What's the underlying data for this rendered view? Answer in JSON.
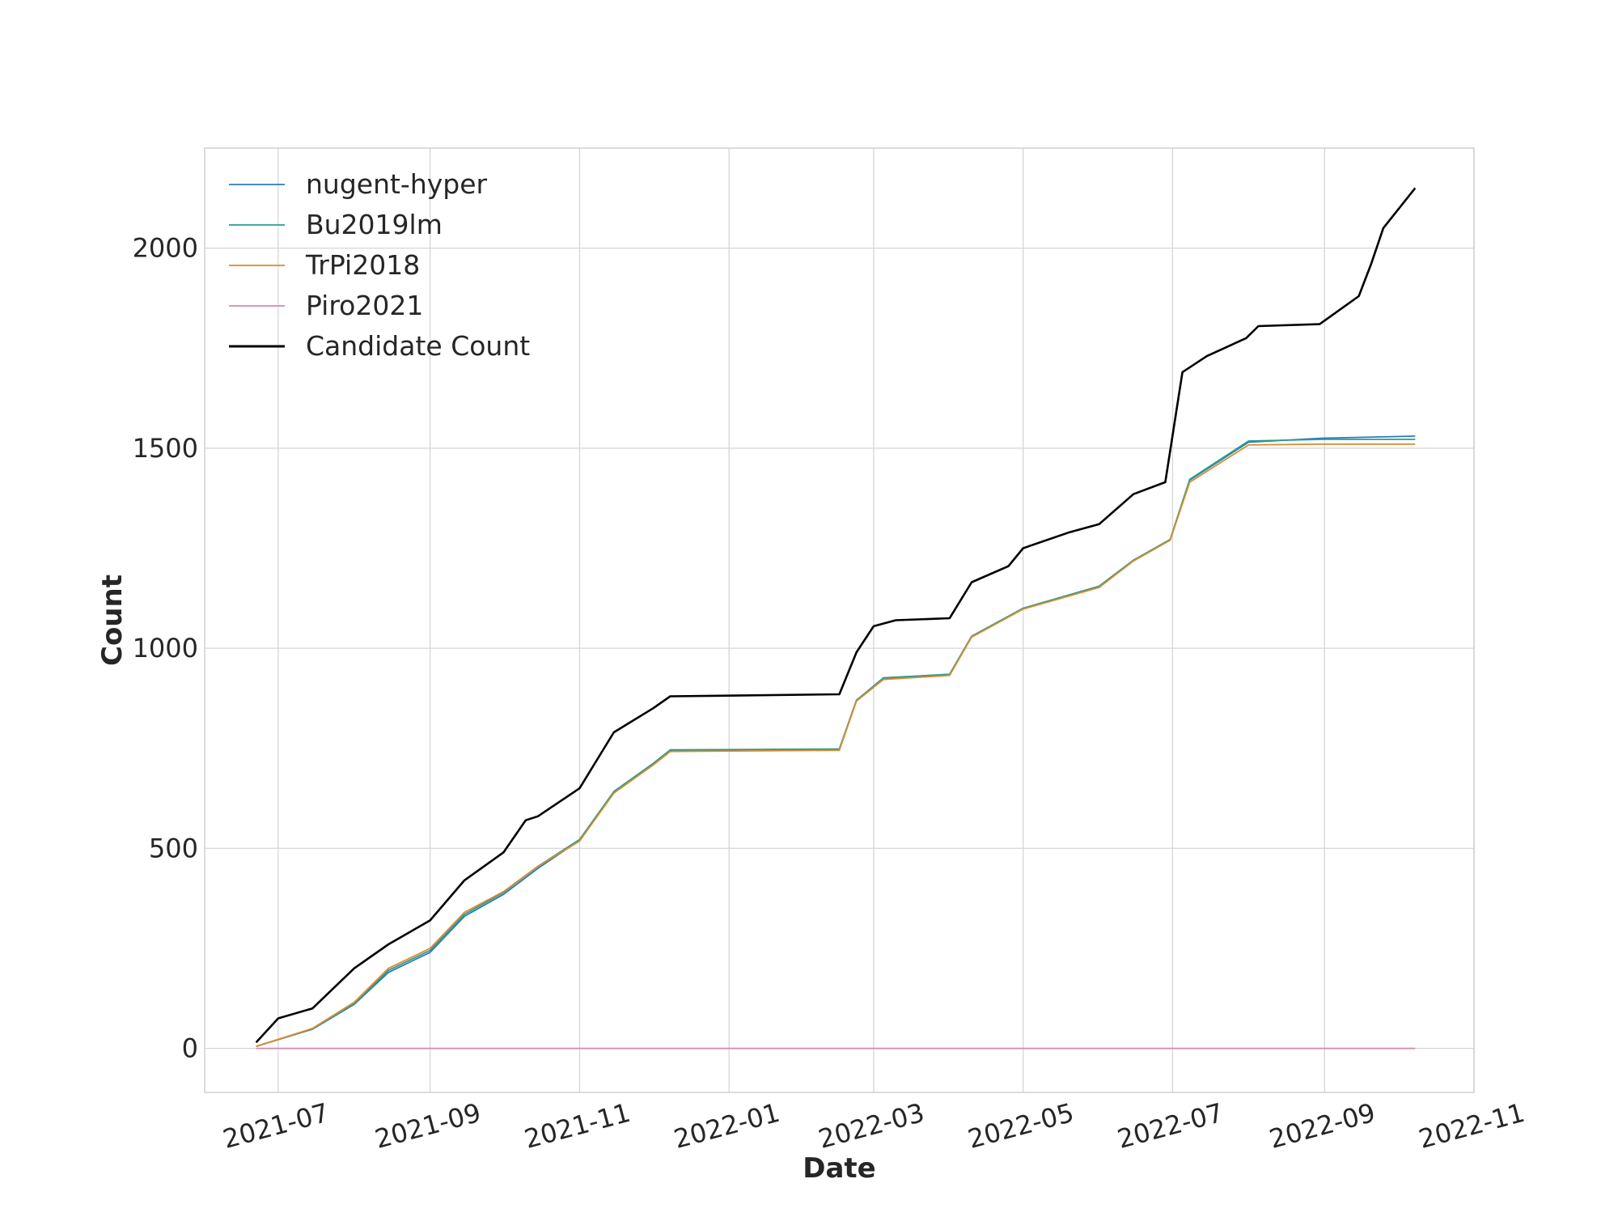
{
  "chart_data": {
    "type": "line",
    "title": "",
    "xlabel": "Date",
    "ylabel": "Count",
    "xlim": [
      "2021-06-01",
      "2022-11-01"
    ],
    "ylim": [
      -110,
      2250
    ],
    "x_ticks": [
      "2021-07",
      "2021-09",
      "2021-11",
      "2022-01",
      "2022-03",
      "2022-05",
      "2022-07",
      "2022-09",
      "2022-11"
    ],
    "y_ticks": [
      0,
      500,
      1000,
      1500,
      2000
    ],
    "grid": true,
    "legend_position": "top-left",
    "series": [
      {
        "name": "nugent-hyper",
        "color": "#2b7bba",
        "x": [
          "2021-06-22",
          "2021-07-15",
          "2021-08-01",
          "2021-08-15",
          "2021-09-01",
          "2021-09-15",
          "2021-10-01",
          "2021-10-15",
          "2021-11-01",
          "2021-11-15",
          "2021-12-01",
          "2021-12-08",
          "2022-02-15",
          "2022-02-22",
          "2022-03-05",
          "2022-04-01",
          "2022-04-10",
          "2022-05-01",
          "2022-06-01",
          "2022-06-15",
          "2022-06-30",
          "2022-07-08",
          "2022-08-01",
          "2022-08-31",
          "2022-10-08"
        ],
        "y": [
          5,
          48,
          110,
          190,
          240,
          330,
          385,
          450,
          520,
          640,
          710,
          745,
          748,
          870,
          925,
          935,
          1030,
          1100,
          1155,
          1220,
          1270,
          1420,
          1515,
          1525,
          1530
        ]
      },
      {
        "name": "Bu2019lm",
        "color": "#2a9d8f",
        "x": [
          "2021-06-22",
          "2021-07-15",
          "2021-08-01",
          "2021-08-15",
          "2021-09-01",
          "2021-09-15",
          "2021-10-01",
          "2021-10-15",
          "2021-11-01",
          "2021-11-15",
          "2021-12-01",
          "2021-12-08",
          "2022-02-15",
          "2022-02-22",
          "2022-03-05",
          "2022-04-01",
          "2022-04-10",
          "2022-05-01",
          "2022-06-01",
          "2022-06-15",
          "2022-06-30",
          "2022-07-08",
          "2022-08-01",
          "2022-08-31",
          "2022-10-08"
        ],
        "y": [
          5,
          49,
          112,
          195,
          245,
          335,
          390,
          455,
          522,
          642,
          712,
          746,
          748,
          870,
          926,
          935,
          1030,
          1100,
          1155,
          1220,
          1272,
          1422,
          1518,
          1522,
          1522
        ]
      },
      {
        "name": "TrPi2018",
        "color": "#dd8a2c",
        "x": [
          "2021-06-22",
          "2021-07-15",
          "2021-08-01",
          "2021-08-15",
          "2021-09-01",
          "2021-09-15",
          "2021-10-01",
          "2021-10-15",
          "2021-11-01",
          "2021-11-15",
          "2021-12-01",
          "2021-12-08",
          "2022-02-15",
          "2022-02-22",
          "2022-03-05",
          "2022-04-01",
          "2022-04-10",
          "2022-05-01",
          "2022-06-01",
          "2022-06-15",
          "2022-06-30",
          "2022-07-08",
          "2022-08-01",
          "2022-08-31",
          "2022-10-08"
        ],
        "y": [
          5,
          50,
          115,
          200,
          250,
          340,
          392,
          455,
          518,
          638,
          708,
          742,
          745,
          868,
          922,
          932,
          1028,
          1098,
          1152,
          1218,
          1270,
          1415,
          1508,
          1510,
          1510
        ]
      },
      {
        "name": "Piro2021",
        "color": "#d487b0",
        "x": [
          "2021-06-22",
          "2022-10-08"
        ],
        "y": [
          0,
          0
        ]
      },
      {
        "name": "Candidate Count",
        "color": "#000000",
        "x": [
          "2021-06-22",
          "2021-07-01",
          "2021-07-15",
          "2021-08-01",
          "2021-08-15",
          "2021-09-01",
          "2021-09-15",
          "2021-10-01",
          "2021-10-10",
          "2021-10-15",
          "2021-11-01",
          "2021-11-15",
          "2021-12-01",
          "2021-12-08",
          "2022-02-15",
          "2022-02-22",
          "2022-03-01",
          "2022-03-10",
          "2022-04-01",
          "2022-04-10",
          "2022-04-25",
          "2022-05-01",
          "2022-05-20",
          "2022-06-01",
          "2022-06-15",
          "2022-06-28",
          "2022-07-05",
          "2022-07-15",
          "2022-07-31",
          "2022-08-05",
          "2022-08-30",
          "2022-09-15",
          "2022-09-20",
          "2022-09-25",
          "2022-10-08"
        ],
        "y": [
          15,
          75,
          100,
          200,
          260,
          320,
          420,
          490,
          570,
          580,
          650,
          790,
          850,
          880,
          885,
          990,
          1055,
          1070,
          1075,
          1165,
          1205,
          1250,
          1290,
          1310,
          1385,
          1415,
          1690,
          1730,
          1775,
          1805,
          1810,
          1880,
          1960,
          2050,
          2150
        ]
      }
    ]
  }
}
